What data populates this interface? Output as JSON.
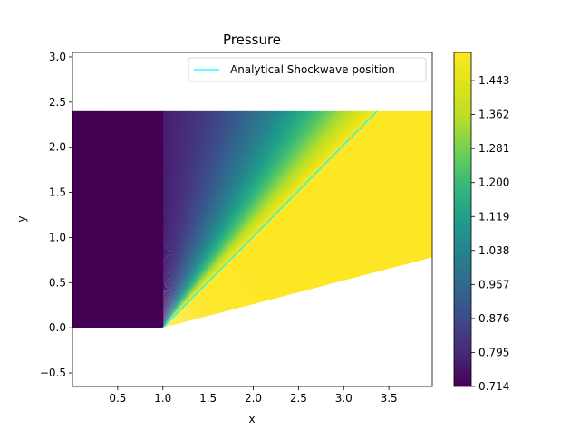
{
  "chart_data": {
    "type": "heatmap",
    "title": "Pressure",
    "xlabel": "x",
    "ylabel": "y",
    "xlim": [
      0.0,
      3.98
    ],
    "ylim": [
      -0.65,
      3.05
    ],
    "xticks": [
      0.5,
      1.0,
      1.5,
      2.0,
      2.5,
      3.0,
      3.5
    ],
    "xtick_labels": [
      "0.5",
      "1.0",
      "1.5",
      "2.0",
      "2.5",
      "3.0",
      "3.5"
    ],
    "yticks": [
      -0.5,
      0.0,
      0.5,
      1.0,
      1.5,
      2.0,
      2.5,
      3.0
    ],
    "ytick_labels": [
      "−0.5",
      "0.0",
      "0.5",
      "1.0",
      "1.5",
      "2.0",
      "2.5",
      "3.0"
    ],
    "domain": {
      "x_range": [
        0.0,
        3.98
      ],
      "y_top": 2.4,
      "wedge_corner": [
        1.0,
        0.0
      ],
      "wedge_end": [
        3.98,
        0.78
      ]
    },
    "shock_line": {
      "name": "Analytical Shockwave position",
      "color": "#00ffff",
      "x": [
        1.0,
        3.37
      ],
      "y": [
        0.0,
        2.4
      ]
    },
    "legend_position": "top-right",
    "colorbar": {
      "colormap": "viridis",
      "min": 0.714,
      "max": 1.51,
      "ticks": [
        0.714,
        0.795,
        0.876,
        0.957,
        1.038,
        1.119,
        1.2,
        1.281,
        1.362,
        1.443
      ],
      "tick_labels": [
        "0.714",
        "0.795",
        "0.876",
        "0.957",
        "1.038",
        "1.119",
        "1.200",
        "1.281",
        "1.362",
        "1.443"
      ]
    },
    "free_stream_pressure": 0.714,
    "post_shock_pressure": 1.51
  }
}
